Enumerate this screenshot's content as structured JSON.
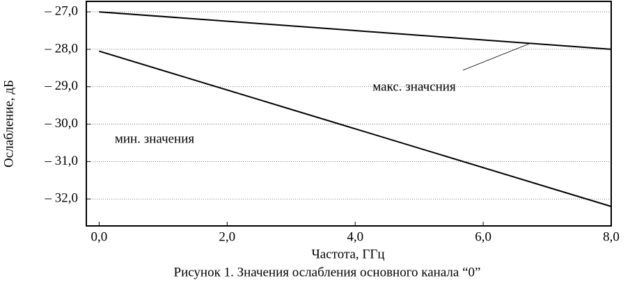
{
  "chart_data": {
    "type": "line",
    "title": "Рисунок 1. Значения ослабления основного канала “0”",
    "xlabel": "Частота, ГГц",
    "ylabel": "Ослабление, дБ",
    "x": [
      0,
      8
    ],
    "series": [
      {
        "name": "макс. значсния",
        "color": "#000000",
        "values": [
          -27.0,
          -28.0
        ]
      },
      {
        "name": "мин. значения",
        "color": "#000000",
        "values": [
          -28.05,
          -32.2
        ]
      }
    ],
    "xlim": [
      -0.2,
      8
    ],
    "ylim": [
      -32.72,
      -26.72
    ],
    "xticks": [
      {
        "value": 0,
        "label": "0,0"
      },
      {
        "value": 2,
        "label": "2,0"
      },
      {
        "value": 4,
        "label": "4,0"
      },
      {
        "value": 6,
        "label": "6,0"
      },
      {
        "value": 8,
        "label": "8,0"
      }
    ],
    "yticks": [
      {
        "value": -27,
        "label": "– 27,0"
      },
      {
        "value": -28,
        "label": "– 28,0"
      },
      {
        "value": -29,
        "label": "– 29,0"
      },
      {
        "value": -30,
        "label": "– 30,0"
      },
      {
        "value": -31,
        "label": "– 31,0"
      },
      {
        "value": -32,
        "label": "– 32,0"
      }
    ],
    "grid": true
  }
}
